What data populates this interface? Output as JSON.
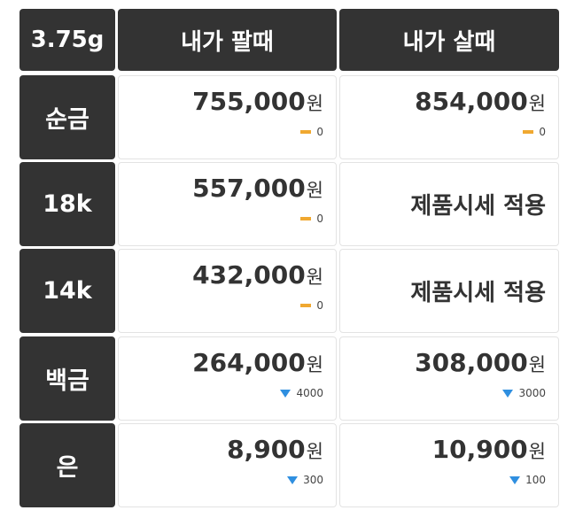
{
  "header": [
    "3.75g",
    "내가 팔때",
    "내가 살때"
  ],
  "rows": [
    {
      "label": "순금",
      "cells": [
        {
          "price": "755,000",
          "unit": "원",
          "trend": "flat",
          "change": "0"
        },
        {
          "price": "854,000",
          "unit": "원",
          "trend": "flat",
          "change": "0"
        }
      ]
    },
    {
      "label": "18k",
      "cells": [
        {
          "price": "557,000",
          "unit": "원",
          "trend": "flat",
          "change": "0"
        },
        {
          "note": "제품시세 적용"
        }
      ]
    },
    {
      "label": "14k",
      "cells": [
        {
          "price": "432,000",
          "unit": "원",
          "trend": "flat",
          "change": "0"
        },
        {
          "note": "제품시세 적용"
        }
      ]
    },
    {
      "label": "백금",
      "cells": [
        {
          "price": "264,000",
          "unit": "원",
          "trend": "down",
          "change": "4000"
        },
        {
          "price": "308,000",
          "unit": "원",
          "trend": "down",
          "change": "3000"
        }
      ]
    },
    {
      "label": "은",
      "cells": [
        {
          "price": "8,900",
          "unit": "원",
          "trend": "down",
          "change": "300"
        },
        {
          "price": "10,900",
          "unit": "원",
          "trend": "down",
          "change": "100"
        }
      ]
    }
  ]
}
